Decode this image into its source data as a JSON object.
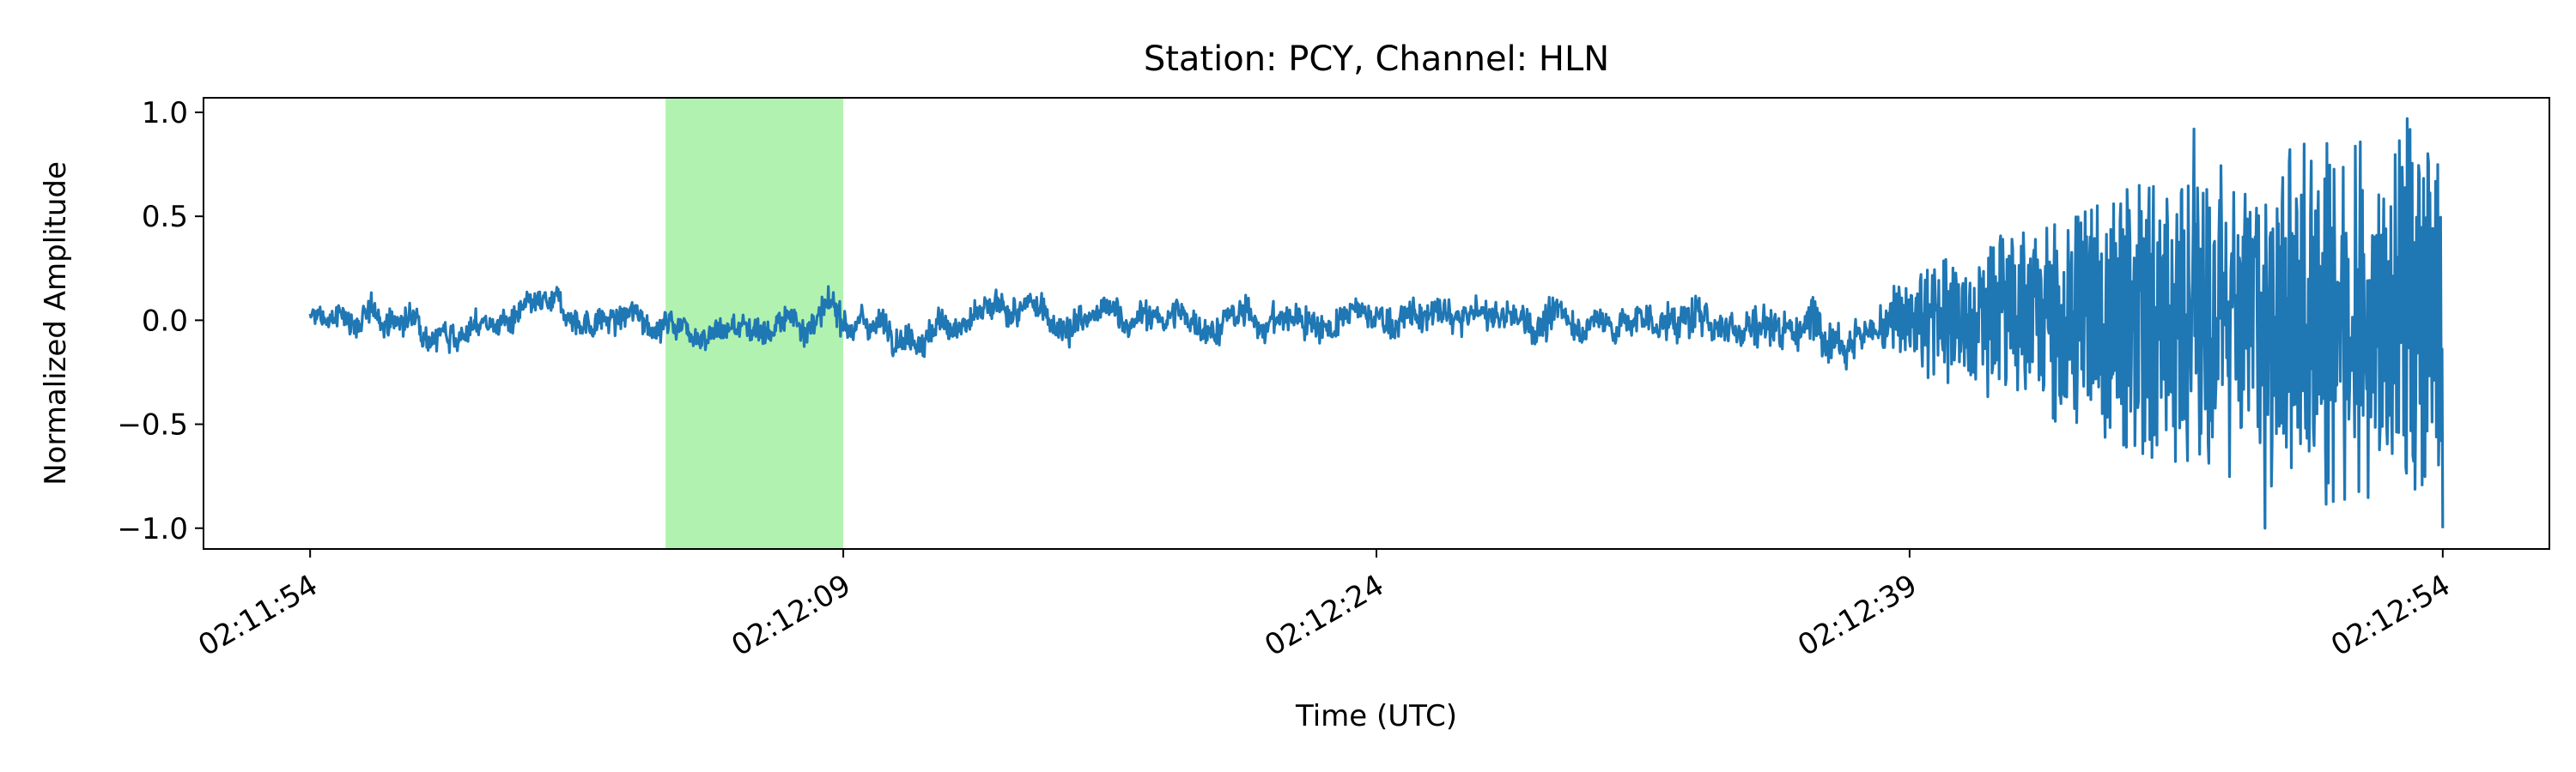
{
  "chart_data": {
    "type": "line",
    "title": "Station: PCY, Channel: HLN",
    "xlabel": "Time (UTC)",
    "ylabel": "Normalized Amplitude",
    "x_start": "02:11:54",
    "x_end": "02:12:54",
    "xlim": [
      "02:11:51",
      "02:12:57"
    ],
    "ylim": [
      -1.1,
      1.07
    ],
    "x_ticks": [
      "02:11:54",
      "02:12:09",
      "02:12:24",
      "02:12:39",
      "02:12:54"
    ],
    "y_ticks": [
      1.0,
      0.5,
      0.0,
      -0.5,
      -1.0
    ],
    "y_tick_labels": [
      "1.0",
      "0.5",
      "0.0",
      "−0.5",
      "−1.0"
    ],
    "highlight": {
      "start": "02:12:04",
      "end": "02:12:09",
      "color": "#b2f2b0"
    },
    "series": [
      {
        "color": "#1f77b4",
        "envelope": [
          {
            "t": "02:11:54",
            "amp": 0.08
          },
          {
            "t": "02:12:30",
            "amp": 0.1
          },
          {
            "t": "02:12:38",
            "amp": 0.16
          },
          {
            "t": "02:12:40",
            "amp": 0.32
          },
          {
            "t": "02:12:42",
            "amp": 0.45
          },
          {
            "t": "02:12:46",
            "amp": 0.7
          },
          {
            "t": "02:12:50",
            "amp": 0.9
          },
          {
            "t": "02:12:54",
            "amp": 0.95
          }
        ],
        "extremes": [
          {
            "t": "02:12:47",
            "y": 0.92
          },
          {
            "t": "02:12:49",
            "y": -1.0
          },
          {
            "t": "02:12:53",
            "y": 0.97
          },
          {
            "t": "02:12:54",
            "y": -1.0
          }
        ]
      }
    ]
  }
}
